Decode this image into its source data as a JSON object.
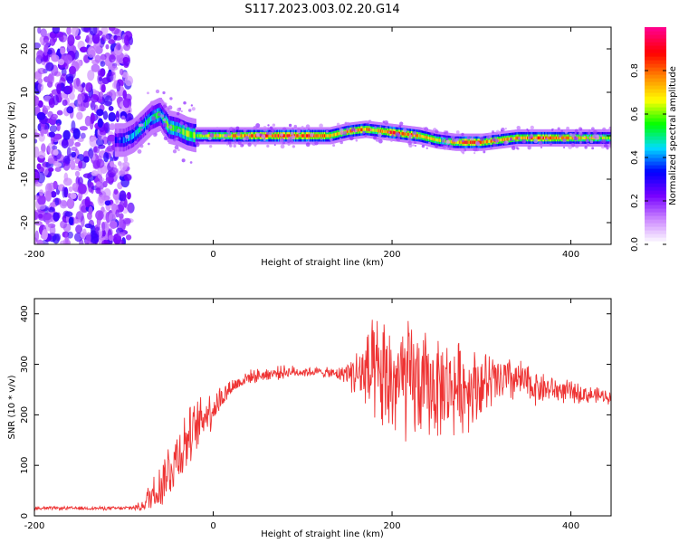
{
  "figure_title": "S117.2023.003.02.20.G14",
  "chart_data": [
    {
      "type": "heatmap",
      "xlabel": "Height of straight line (km)",
      "ylabel": "Frequency (Hz)",
      "xlim": [
        -200,
        445
      ],
      "ylim": [
        -25,
        25
      ],
      "xticks": [
        -200,
        0,
        200,
        400
      ],
      "yticks": [
        -20,
        -10,
        0,
        10,
        20
      ],
      "colorbar": {
        "label": "Normalized spectral amplitude",
        "range": [
          0,
          1
        ],
        "ticks": [
          0.0,
          0.2,
          0.4,
          0.6,
          0.8
        ],
        "colors": [
          "#ffffff",
          "#cc88ff",
          "#7700ff",
          "#0000ff",
          "#00ddff",
          "#00ff00",
          "#ffff00",
          "#ff8800",
          "#ff0000",
          "#ff0088"
        ]
      },
      "ridge_frequency_hz": {
        "x": [
          -100,
          -90,
          -80,
          -70,
          -60,
          -50,
          -40,
          -30,
          -20,
          0,
          50,
          100,
          130,
          150,
          170,
          190,
          210,
          230,
          250,
          270,
          300,
          340,
          380,
          420,
          445
        ],
        "y": [
          -1,
          0,
          2,
          4,
          5,
          2,
          1.5,
          0.5,
          0,
          0,
          0,
          0,
          0,
          1,
          1.5,
          1,
          0.5,
          0,
          -1,
          -1.5,
          -1.5,
          -0.5,
          -0.5,
          -0.5,
          -0.5
        ]
      },
      "ridge_amplitude": {
        "x": [
          -110,
          -90,
          -70,
          -50,
          -30,
          -10,
          20,
          50,
          80,
          110,
          140,
          160,
          180,
          200,
          220,
          240,
          260,
          280,
          300,
          330,
          360,
          400,
          445
        ],
        "y": [
          0.3,
          0.45,
          0.5,
          0.55,
          0.6,
          0.65,
          0.75,
          0.8,
          0.85,
          0.85,
          0.7,
          0.8,
          0.7,
          0.85,
          0.8,
          0.7,
          0.6,
          0.85,
          0.8,
          0.7,
          0.8,
          0.75,
          0.6
        ]
      },
      "noise_region_x": [
        -200,
        -100
      ]
    },
    {
      "type": "line",
      "xlabel": "Height of straight line (km)",
      "ylabel": "SNR (10 * v/v)",
      "xlim": [
        -200,
        445
      ],
      "ylim": [
        0,
        430
      ],
      "xticks": [
        -200,
        0,
        200,
        400
      ],
      "yticks": [
        0,
        100,
        200,
        300,
        400
      ],
      "series": [
        {
          "color": "#ee3333",
          "x": [
            -200,
            -150,
            -100,
            -80,
            -70,
            -60,
            -50,
            -40,
            -30,
            -20,
            -10,
            0,
            10,
            20,
            40,
            60,
            80,
            100,
            120,
            140,
            150,
            160,
            170,
            180,
            190,
            200,
            220,
            240,
            260,
            280,
            300,
            320,
            340,
            360,
            380,
            400,
            420,
            445
          ],
          "y": [
            15,
            15,
            15,
            18,
            40,
            60,
            90,
            120,
            150,
            170,
            200,
            215,
            235,
            255,
            275,
            280,
            285,
            285,
            285,
            280,
            285,
            280,
            280,
            270,
            270,
            265,
            265,
            255,
            255,
            255,
            260,
            265,
            270,
            255,
            250,
            245,
            240,
            235
          ],
          "spread": [
            4,
            4,
            4,
            10,
            40,
            60,
            70,
            80,
            70,
            60,
            55,
            45,
            30,
            20,
            15,
            15,
            15,
            12,
            10,
            15,
            25,
            60,
            100,
            130,
            140,
            140,
            140,
            120,
            110,
            100,
            80,
            60,
            50,
            40,
            30,
            25,
            20,
            15
          ]
        }
      ]
    }
  ]
}
